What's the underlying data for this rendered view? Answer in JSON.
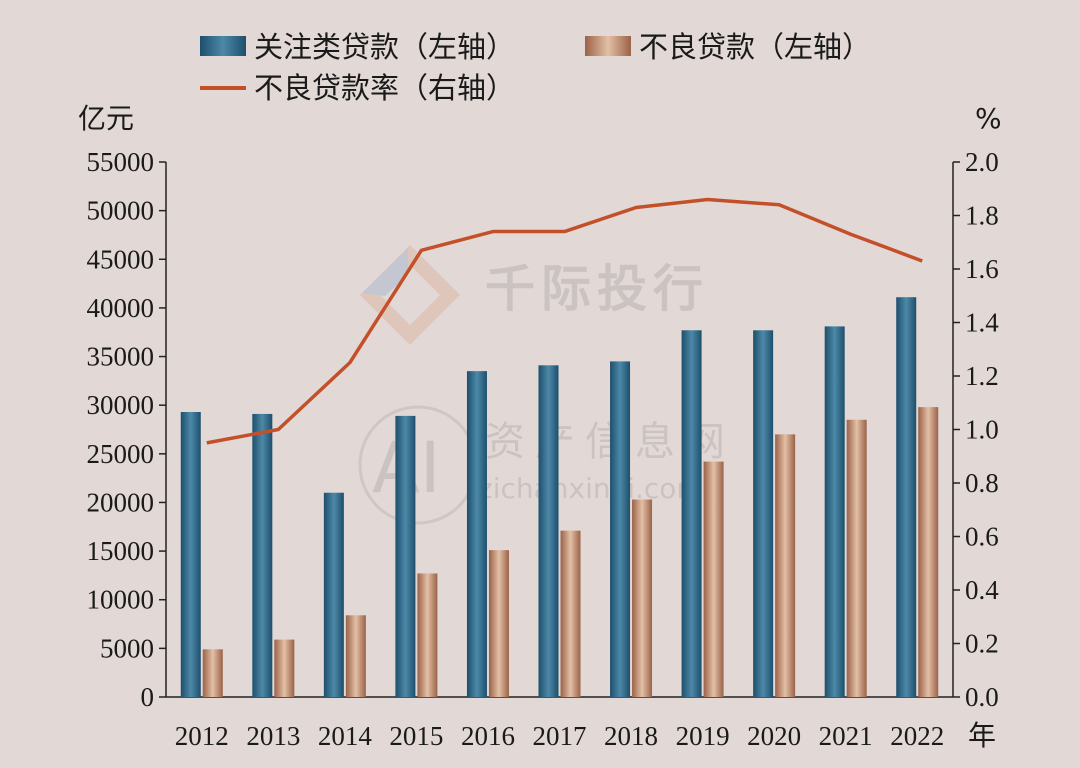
{
  "chart_data": {
    "type": "bar",
    "categories": [
      "2012",
      "2013",
      "2014",
      "2015",
      "2016",
      "2017",
      "2018",
      "2019",
      "2020",
      "2021",
      "2022"
    ],
    "series": [
      {
        "name": "关注类贷款（左轴）",
        "type": "bar",
        "axis": "left",
        "color": "#2f6a88",
        "values": [
          29300,
          29100,
          21000,
          28900,
          33500,
          34100,
          34500,
          37700,
          37700,
          38100,
          41100
        ]
      },
      {
        "name": "不良贷款（左轴）",
        "type": "bar",
        "axis": "left",
        "color": "#b98468",
        "values": [
          4900,
          5900,
          8400,
          12700,
          15100,
          17100,
          20300,
          24200,
          27000,
          28500,
          29800
        ]
      },
      {
        "name": "不良贷款率（右轴）",
        "type": "line",
        "axis": "right",
        "color": "#c4502a",
        "values": [
          0.95,
          1.0,
          1.25,
          1.67,
          1.74,
          1.74,
          1.83,
          1.86,
          1.84,
          1.73,
          1.63
        ]
      }
    ],
    "left_unit": "亿元",
    "right_unit": "%",
    "x_unit": "年",
    "ylim_left": [
      0,
      55000
    ],
    "yticks_left": [
      "0",
      "5000",
      "10000",
      "15000",
      "20000",
      "25000",
      "30000",
      "35000",
      "40000",
      "45000",
      "50000",
      "55000"
    ],
    "ylim_right": [
      0,
      2.0
    ],
    "yticks_right": [
      "0.0",
      "0.2",
      "0.4",
      "0.6",
      "0.8",
      "1.0",
      "1.2",
      "1.4",
      "1.6",
      "1.8",
      "2.0"
    ],
    "legend_position": "top",
    "grid": false
  },
  "watermark": {
    "brand": "千际投行",
    "site_name": "资产信息网",
    "site_url": "zichanxinxi.com",
    "logo_text": "AI"
  }
}
